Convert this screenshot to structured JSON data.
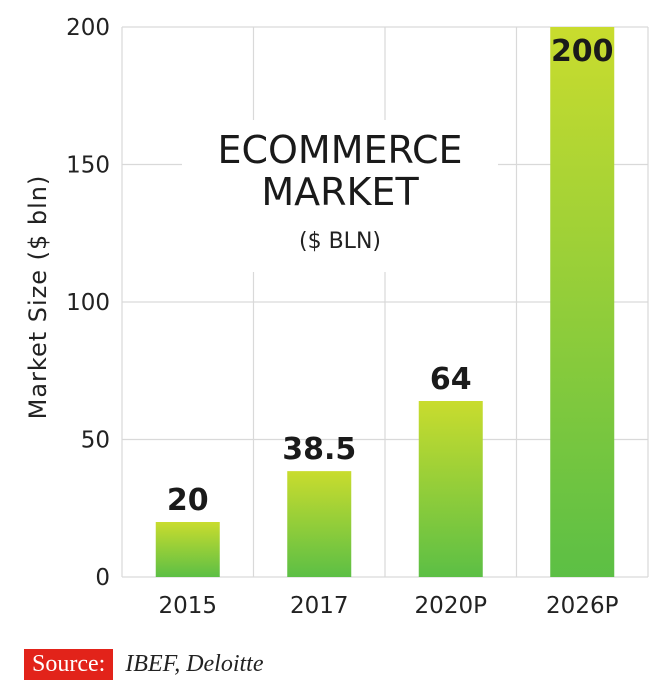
{
  "chart_data": {
    "type": "bar",
    "title": "ECOMMERCE",
    "title_line2": "MARKET",
    "subtitle": "($ BLN)",
    "ylabel": "Market Size ($ bln)",
    "xlabel": "",
    "categories": [
      "2015",
      "2017",
      "2020P",
      "2026P"
    ],
    "values": [
      20,
      38.5,
      64,
      200
    ],
    "value_labels": [
      "20",
      "38.5",
      "64",
      "200"
    ],
    "ylim": [
      0,
      200
    ],
    "yticks": [
      0,
      50,
      100,
      150,
      200
    ],
    "grid": true,
    "colors": {
      "bar_top": "#c9dc2e",
      "bar_bottom": "#5cbf45",
      "grid": "#d9d9d9"
    }
  },
  "source": {
    "label": "Source:",
    "text": "IBEF, Deloitte"
  }
}
